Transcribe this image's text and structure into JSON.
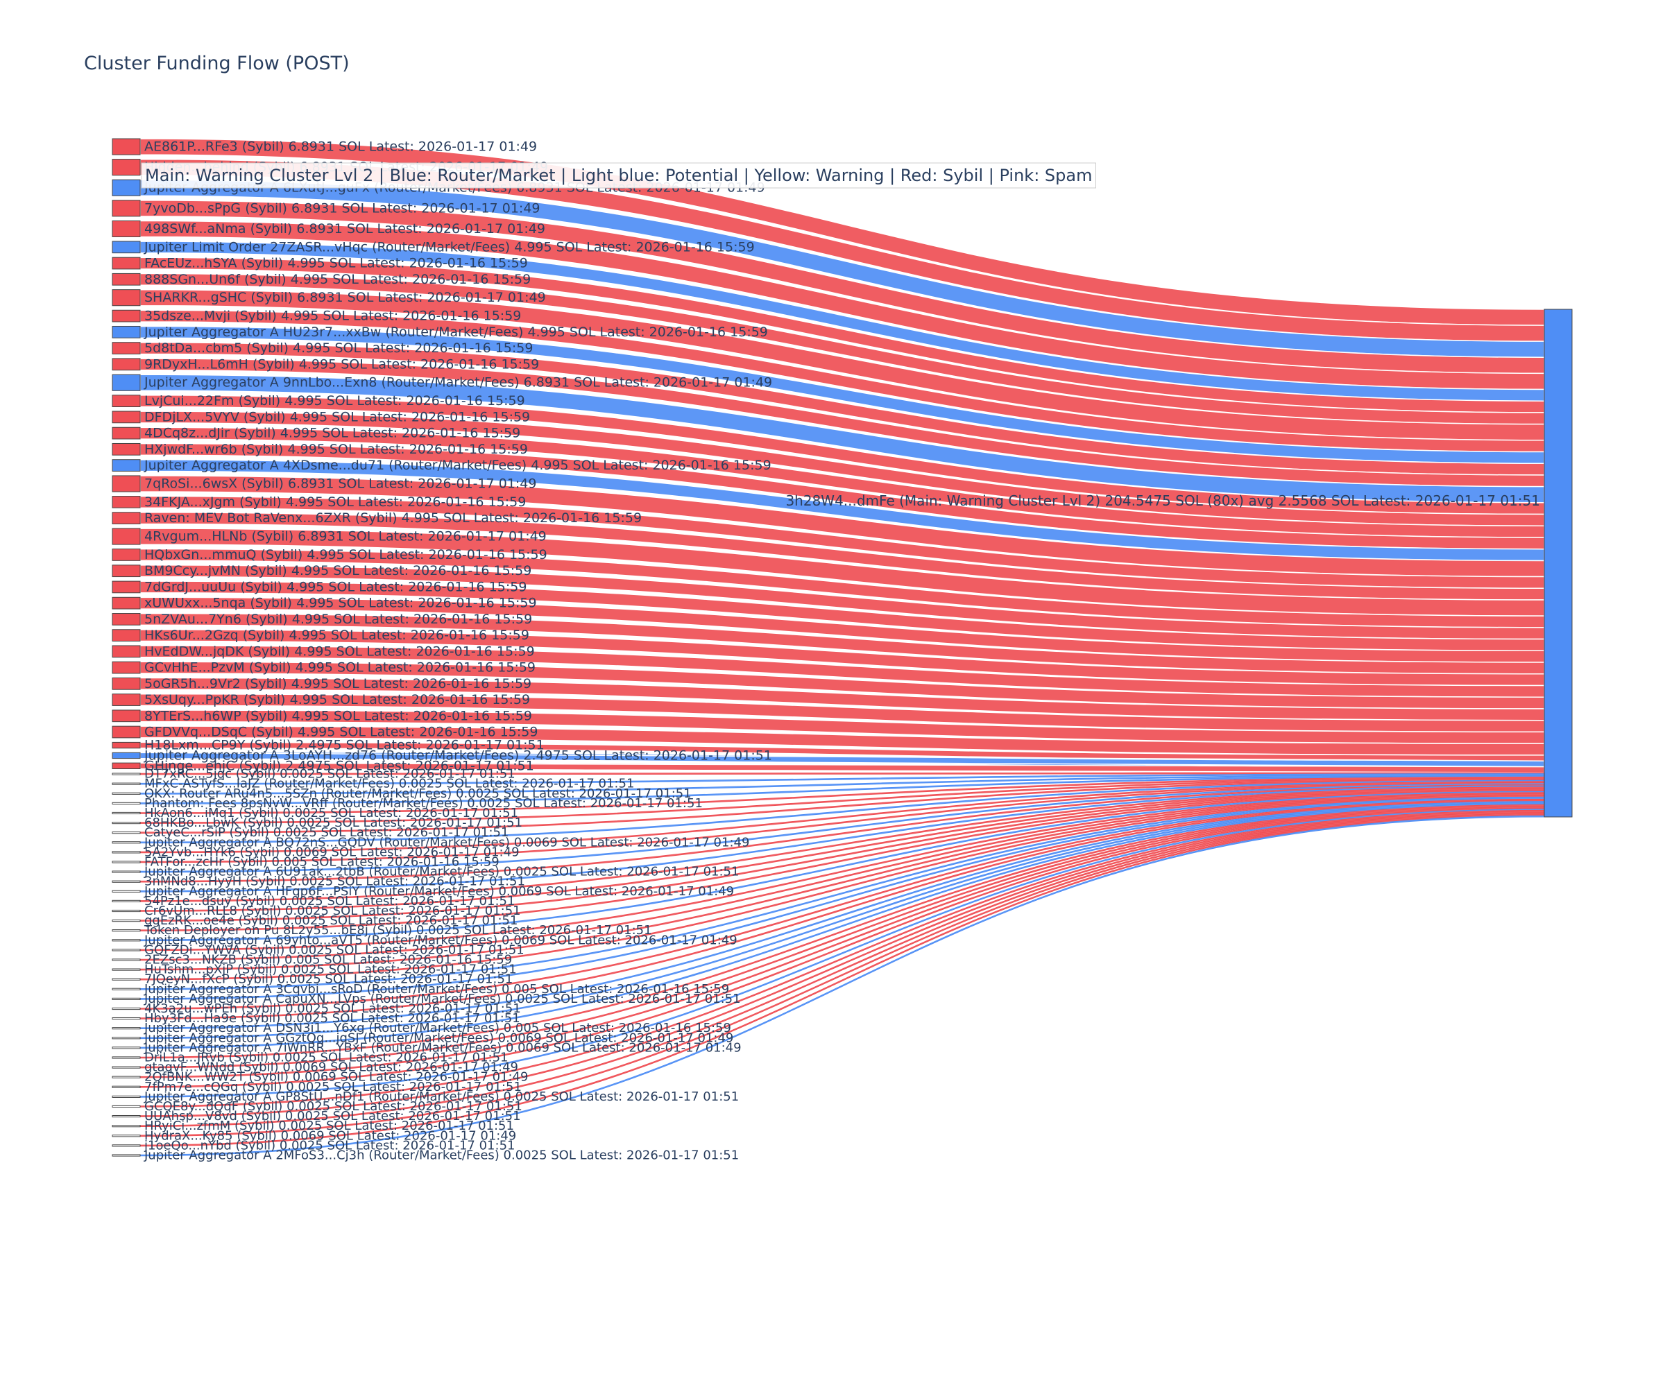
{
  "chart_data": {
    "type": "sankey",
    "title": "Cluster Funding Flow (POST)",
    "legend": {
      "text": "Main: Warning Cluster Lvl 2  |  Blue: Router/Market  |  Light blue: Potential  |  Yellow: Warning  |  Red: Sybil  |  Pink: Spam",
      "placement": "top-left"
    },
    "colors": {
      "sybil": "#ef4f55",
      "router": "#4f8ef5",
      "node_border": "#444444",
      "text": "#2a3f5f"
    },
    "target": {
      "label": "3h28W4...dmFe (Main: Warning Cluster Lvl 2) 204.5475 SOL (80x) avg 2.5568 SOL Latest: 2026-01-17 01:51",
      "color": "#4f8ef5"
    },
    "sources": [
      {
        "label": "AE861P...RFe3 (Sybil) 6.8931 SOL Latest: 2026-01-17 01:49",
        "value": 6.8931,
        "kind": "sybil"
      },
      {
        "label": "Hidden...behind (Sybil) 6.8931 SOL Latest: 2026-01-17 01:49",
        "value": 6.8931,
        "kind": "sybil"
      },
      {
        "label": "Jupiter Aggregator A 6LXutJ...guFx (Router/Market/Fees) 6.8931 SOL Latest: 2026-01-17 01:49",
        "value": 6.8931,
        "kind": "router"
      },
      {
        "label": "7yvoDb...sPpG (Sybil) 6.8931 SOL Latest: 2026-01-17 01:49",
        "value": 6.8931,
        "kind": "sybil"
      },
      {
        "label": "498SWf...aNma (Sybil) 6.8931 SOL Latest: 2026-01-17 01:49",
        "value": 6.8931,
        "kind": "sybil"
      },
      {
        "label": "Jupiter Limit Order 27ZASR...vHqc (Router/Market/Fees) 4.995 SOL Latest: 2026-01-16 15:59",
        "value": 4.995,
        "kind": "router"
      },
      {
        "label": "FAcEUz...hSYA (Sybil) 4.995 SOL Latest: 2026-01-16 15:59",
        "value": 4.995,
        "kind": "sybil"
      },
      {
        "label": "888SGn...Un6f (Sybil) 4.995 SOL Latest: 2026-01-16 15:59",
        "value": 4.995,
        "kind": "sybil"
      },
      {
        "label": "SHARKR...gSHC (Sybil) 6.8931 SOL Latest: 2026-01-17 01:49",
        "value": 6.8931,
        "kind": "sybil"
      },
      {
        "label": "35dsze...Mvji (Sybil) 4.995 SOL Latest: 2026-01-16 15:59",
        "value": 4.995,
        "kind": "sybil"
      },
      {
        "label": "Jupiter Aggregator A HU23r7...xxBw (Router/Market/Fees) 4.995 SOL Latest: 2026-01-16 15:59",
        "value": 4.995,
        "kind": "router"
      },
      {
        "label": "5d8tDa...cbm5 (Sybil) 4.995 SOL Latest: 2026-01-16 15:59",
        "value": 4.995,
        "kind": "sybil"
      },
      {
        "label": "9RDyxH...L6mH (Sybil) 4.995 SOL Latest: 2026-01-16 15:59",
        "value": 4.995,
        "kind": "sybil"
      },
      {
        "label": "Jupiter Aggregator A 9nnLbo...Exn8 (Router/Market/Fees) 6.8931 SOL Latest: 2026-01-17 01:49",
        "value": 6.8931,
        "kind": "router"
      },
      {
        "label": "LvjCui...22Fm (Sybil) 4.995 SOL Latest: 2026-01-16 15:59",
        "value": 4.995,
        "kind": "sybil"
      },
      {
        "label": "DFDjLX...5VYV (Sybil) 4.995 SOL Latest: 2026-01-16 15:59",
        "value": 4.995,
        "kind": "sybil"
      },
      {
        "label": "4DCq8z...dJir (Sybil) 4.995 SOL Latest: 2026-01-16 15:59",
        "value": 4.995,
        "kind": "sybil"
      },
      {
        "label": "HXjwdF...wr6b (Sybil) 4.995 SOL Latest: 2026-01-16 15:59",
        "value": 4.995,
        "kind": "sybil"
      },
      {
        "label": "Jupiter Aggregator A 4XDsme...du71 (Router/Market/Fees) 4.995 SOL Latest: 2026-01-16 15:59",
        "value": 4.995,
        "kind": "router"
      },
      {
        "label": "7qRoSi...6wsX (Sybil) 6.8931 SOL Latest: 2026-01-17 01:49",
        "value": 6.8931,
        "kind": "sybil"
      },
      {
        "label": "34FKJA...xJgm (Sybil) 4.995 SOL Latest: 2026-01-16 15:59",
        "value": 4.995,
        "kind": "sybil"
      },
      {
        "label": "Raven: MEV Bot RaVenx...6ZXR (Sybil) 4.995 SOL Latest: 2026-01-16 15:59",
        "value": 4.995,
        "kind": "sybil"
      },
      {
        "label": "4Rvgum...HLNb (Sybil) 6.8931 SOL Latest: 2026-01-17 01:49",
        "value": 6.8931,
        "kind": "sybil"
      },
      {
        "label": "HQbxGn...mmuQ (Sybil) 4.995 SOL Latest: 2026-01-16 15:59",
        "value": 4.995,
        "kind": "sybil"
      },
      {
        "label": "BM9Ccy...jvMN (Sybil) 4.995 SOL Latest: 2026-01-16 15:59",
        "value": 4.995,
        "kind": "sybil"
      },
      {
        "label": "7dGrdJ...uuUu (Sybil) 4.995 SOL Latest: 2026-01-16 15:59",
        "value": 4.995,
        "kind": "sybil"
      },
      {
        "label": "xUWUxx...5nqa (Sybil) 4.995 SOL Latest: 2026-01-16 15:59",
        "value": 4.995,
        "kind": "sybil"
      },
      {
        "label": "5nZVAu...7Yn6 (Sybil) 4.995 SOL Latest: 2026-01-16 15:59",
        "value": 4.995,
        "kind": "sybil"
      },
      {
        "label": "HKs6Ur...2Gzq (Sybil) 4.995 SOL Latest: 2026-01-16 15:59",
        "value": 4.995,
        "kind": "sybil"
      },
      {
        "label": "HvEdDW...jqDK (Sybil) 4.995 SOL Latest: 2026-01-16 15:59",
        "value": 4.995,
        "kind": "sybil"
      },
      {
        "label": "GCvHhE...PzvM (Sybil) 4.995 SOL Latest: 2026-01-16 15:59",
        "value": 4.995,
        "kind": "sybil"
      },
      {
        "label": "5oGR5h...9Vr2 (Sybil) 4.995 SOL Latest: 2026-01-16 15:59",
        "value": 4.995,
        "kind": "sybil"
      },
      {
        "label": "5XsUqy...PpKR (Sybil) 4.995 SOL Latest: 2026-01-16 15:59",
        "value": 4.995,
        "kind": "sybil"
      },
      {
        "label": "8YTErS...h6WP (Sybil) 4.995 SOL Latest: 2026-01-16 15:59",
        "value": 4.995,
        "kind": "sybil"
      },
      {
        "label": "GFDVVq...DSqC (Sybil) 4.995 SOL Latest: 2026-01-16 15:59",
        "value": 4.995,
        "kind": "sybil"
      },
      {
        "label": "H18Lxm...CP9Y (Sybil) 2.4975 SOL Latest: 2026-01-17 01:51",
        "value": 2.4975,
        "kind": "sybil"
      },
      {
        "label": "Jupiter Aggregator A 3LoAYH...zd76 (Router/Market/Fees) 2.4975 SOL Latest: 2026-01-17 01:51",
        "value": 2.4975,
        "kind": "router"
      },
      {
        "label": "GHjnge...ehjC (Sybil) 2.4975 SOL Latest: 2026-01-17 01:51",
        "value": 2.4975,
        "kind": "sybil"
      },
      {
        "label": "DT7xRC...5jqc (Sybil) 0.0025 SOL Latest: 2026-01-17 01:51",
        "value": 0.0025,
        "kind": "sybil"
      },
      {
        "label": "MFxC-ASTyfS...IaJZ (Router/Market/Fees) 0.0025 SOL Latest: 2026-01-17 01:51",
        "value": 0.0025,
        "kind": "router"
      },
      {
        "label": "OKX: Router ARu4n5...5SZn (Router/Market/Fees) 0.0025 SOL Latest: 2026-01-17 01:51",
        "value": 0.0025,
        "kind": "router"
      },
      {
        "label": "Phantom: Fees 8psNvW...VRff (Router/Market/Fees) 0.0025 SOL Latest: 2026-01-17 01:51",
        "value": 0.0025,
        "kind": "router"
      },
      {
        "label": "HkAon6...iMq1 (Sybil) 0.0025 SOL Latest: 2026-01-17 01:51",
        "value": 0.0025,
        "kind": "sybil"
      },
      {
        "label": "68HKBo...LbwK (Sybil) 0.0025 SOL Latest: 2026-01-17 01:51",
        "value": 0.0025,
        "kind": "sybil"
      },
      {
        "label": "CatyeC...rSiP (Sybil) 0.0025 SOL Latest: 2026-01-17 01:51",
        "value": 0.0025,
        "kind": "sybil"
      },
      {
        "label": "Jupiter Aggregator A BQ72nS...GQDV (Router/Market/Fees) 0.0069 SOL Latest: 2026-01-17 01:49",
        "value": 0.0069,
        "kind": "router"
      },
      {
        "label": "5A2Yvb...HYk6 (Sybil) 0.0069 SOL Latest: 2026-01-17 01:49",
        "value": 0.0069,
        "kind": "sybil"
      },
      {
        "label": "FATFor...zcHr (Sybil) 0.005 SOL Latest: 2026-01-16 15:59",
        "value": 0.005,
        "kind": "sybil"
      },
      {
        "label": "Jupiter Aggregator A 6U91ak...2tbB (Router/Market/Fees) 0.0025 SOL Latest: 2026-01-17 01:51",
        "value": 0.0025,
        "kind": "router"
      },
      {
        "label": "3nMNd8...HyyH (Sybil) 0.0025 SOL Latest: 2026-01-17 01:51",
        "value": 0.0025,
        "kind": "sybil"
      },
      {
        "label": "Jupiter Aggregator A HFqp6F...PSiY (Router/Market/Fees) 0.0069 SOL Latest: 2026-01-17 01:49",
        "value": 0.0069,
        "kind": "router"
      },
      {
        "label": "54Pz1e...dsuy (Sybil) 0.0025 SOL Latest: 2026-01-17 01:51",
        "value": 0.0025,
        "kind": "sybil"
      },
      {
        "label": "Cr6vUm...RLL8 (Sybil) 0.0025 SOL Latest: 2026-01-17 01:51",
        "value": 0.0025,
        "kind": "sybil"
      },
      {
        "label": "ggEzRK...oe4e (Sybil) 0.0025 SOL Latest: 2026-01-17 01:51",
        "value": 0.0025,
        "kind": "sybil"
      },
      {
        "label": "Token Deployer on Pu 8L2y55...bE8j (Sybil) 0.0025 SOL Latest: 2026-01-17 01:51",
        "value": 0.0025,
        "kind": "sybil"
      },
      {
        "label": "Jupiter Aggregator A 69yhto...aVT5 (Router/Market/Fees) 0.0069 SOL Latest: 2026-01-17 01:49",
        "value": 0.0069,
        "kind": "router"
      },
      {
        "label": "GQFZDi...YWVA (Sybil) 0.0025 SOL Latest: 2026-01-17 01:51",
        "value": 0.0025,
        "kind": "sybil"
      },
      {
        "label": "2EZsc3...NKZB (Sybil) 0.005 SOL Latest: 2026-01-16 15:59",
        "value": 0.005,
        "kind": "sybil"
      },
      {
        "label": "HuTshm...pXjP (Sybil) 0.0025 SOL Latest: 2026-01-17 01:51",
        "value": 0.0025,
        "kind": "sybil"
      },
      {
        "label": "7JQeyN...fXcP (Sybil) 0.0025 SOL Latest: 2026-01-17 01:51",
        "value": 0.0025,
        "kind": "sybil"
      },
      {
        "label": "Jupiter Aggregator A 3Cqvbi...sRoD (Router/Market/Fees) 0.005 SOL Latest: 2026-01-16 15:59",
        "value": 0.005,
        "kind": "router"
      },
      {
        "label": "Jupiter Aggregator A CapuXN...LVps (Router/Market/Fees) 0.0025 SOL Latest: 2026-01-17 01:51",
        "value": 0.0025,
        "kind": "router"
      },
      {
        "label": "4K3a2u...wPEh (Sybil) 0.0025 SOL Latest: 2026-01-17 01:51",
        "value": 0.0025,
        "kind": "sybil"
      },
      {
        "label": "Hby3Fd...Ha9e (Sybil) 0.0025 SOL Latest: 2026-01-17 01:51",
        "value": 0.0025,
        "kind": "sybil"
      },
      {
        "label": "Jupiter Aggregator A DSN3i1...Y6xg (Router/Market/Fees) 0.005 SOL Latest: 2026-01-16 15:59",
        "value": 0.005,
        "kind": "router"
      },
      {
        "label": "Jupiter Aggregator A GGztQq...jqSJ (Router/Market/Fees) 0.0069 SOL Latest: 2026-01-17 01:49",
        "value": 0.0069,
        "kind": "router"
      },
      {
        "label": "Jupiter Aggregator A 7iWnRR...YBxF (Router/Market/Fees) 0.0069 SOL Latest: 2026-01-17 01:49",
        "value": 0.0069,
        "kind": "router"
      },
      {
        "label": "DriL1a...JRvb (Sybil) 0.0025 SOL Latest: 2026-01-17 01:51",
        "value": 0.0025,
        "kind": "sybil"
      },
      {
        "label": "gtaqvF...WNdd (Sybil) 0.0069 SOL Latest: 2026-01-17 01:49",
        "value": 0.0069,
        "kind": "sybil"
      },
      {
        "label": "2QfBNK...WW2T (Sybil) 0.0069 SOL Latest: 2026-01-17 01:49",
        "value": 0.0069,
        "kind": "sybil"
      },
      {
        "label": "7fPm7e...cQGq (Sybil) 0.0025 SOL Latest: 2026-01-17 01:51",
        "value": 0.0025,
        "kind": "sybil"
      },
      {
        "label": "Jupiter Aggregator A GP8StU...nDf1 (Router/Market/Fees) 0.0025 SOL Latest: 2026-01-17 01:51",
        "value": 0.0025,
        "kind": "router"
      },
      {
        "label": "GCQE8y...dQqF (Sybil) 0.0025 SOL Latest: 2026-01-17 01:51",
        "value": 0.0025,
        "kind": "sybil"
      },
      {
        "label": "UUAhsp...V8vd (Sybil) 0.0025 SOL Latest: 2026-01-17 01:51",
        "value": 0.0025,
        "kind": "sybil"
      },
      {
        "label": "HRyiCi...zfmM (Sybil) 0.0025 SOL Latest: 2026-01-17 01:51",
        "value": 0.0025,
        "kind": "sybil"
      },
      {
        "label": "HydraX...Ky85 (Sybil) 0.0069 SOL Latest: 2026-01-17 01:49",
        "value": 0.0069,
        "kind": "sybil"
      },
      {
        "label": "j1oeQo...nYbd (Sybil) 0.0025 SOL Latest: 2026-01-17 01:51",
        "value": 0.0025,
        "kind": "sybil"
      },
      {
        "label": "Jupiter Aggregator A 2MFoS3...Cj3h (Router/Market/Fees) 0.0025 SOL Latest: 2026-01-17 01:51",
        "value": 0.0025,
        "kind": "router"
      }
    ]
  }
}
